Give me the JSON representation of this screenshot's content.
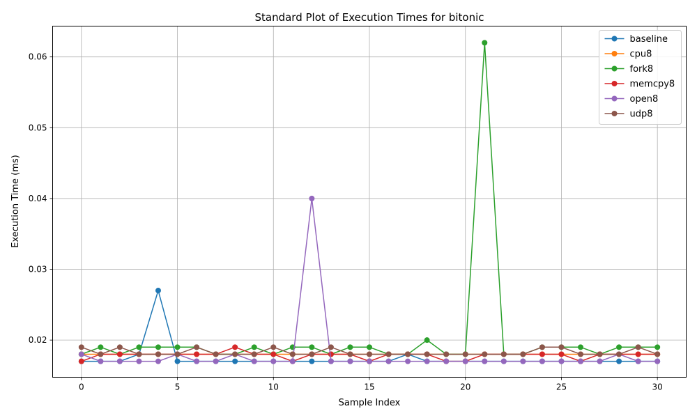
{
  "chart_data": {
    "type": "line",
    "title": "Standard Plot of Execution Times for bitonic",
    "xlabel": "Sample Index",
    "ylabel": "Execution Time (ms)",
    "xlim": [
      -1.5,
      31.5
    ],
    "ylim": [
      0.01475,
      0.06435
    ],
    "xticks": [
      0,
      5,
      10,
      15,
      20,
      25,
      30
    ],
    "yticks": [
      0.02,
      0.03,
      0.04,
      0.05,
      0.06
    ],
    "ytick_labels": [
      "0.02",
      "0.03",
      "0.04",
      "0.05",
      "0.06"
    ],
    "grid": true,
    "legend_position": "top-right",
    "x": [
      0,
      1,
      2,
      3,
      4,
      5,
      6,
      7,
      8,
      9,
      10,
      11,
      12,
      13,
      14,
      15,
      16,
      17,
      18,
      19,
      20,
      21,
      22,
      23,
      24,
      25,
      26,
      27,
      28,
      29,
      30
    ],
    "series": [
      {
        "name": "baseline",
        "color": "#1f77b4",
        "values": [
          0.017,
          0.017,
          0.017,
          0.018,
          0.027,
          0.017,
          0.017,
          0.017,
          0.017,
          0.017,
          0.017,
          0.017,
          0.017,
          0.017,
          0.017,
          0.017,
          0.017,
          0.018,
          0.017,
          0.017,
          0.017,
          0.017,
          0.017,
          0.017,
          0.017,
          0.017,
          0.017,
          0.017,
          0.017,
          0.017,
          0.017
        ]
      },
      {
        "name": "cpu8",
        "color": "#ff7f0e",
        "values": [
          0.018,
          0.018,
          0.018,
          0.018,
          0.018,
          0.018,
          0.018,
          0.018,
          0.018,
          0.018,
          0.018,
          0.018,
          0.018,
          0.018,
          0.018,
          0.018,
          0.018,
          0.018,
          0.018,
          0.018,
          0.018,
          0.018,
          0.018,
          0.018,
          0.018,
          0.018,
          0.018,
          0.018,
          0.018,
          0.018,
          0.018
        ]
      },
      {
        "name": "fork8",
        "color": "#2ca02c",
        "values": [
          0.018,
          0.019,
          0.018,
          0.019,
          0.019,
          0.019,
          0.019,
          0.018,
          0.018,
          0.019,
          0.018,
          0.019,
          0.019,
          0.018,
          0.019,
          0.019,
          0.018,
          0.018,
          0.02,
          0.018,
          0.018,
          0.062,
          0.018,
          0.018,
          0.019,
          0.019,
          0.019,
          0.018,
          0.019,
          0.019,
          0.019
        ]
      },
      {
        "name": "memcpy8",
        "color": "#d62728",
        "values": [
          0.017,
          0.018,
          0.018,
          0.018,
          0.018,
          0.018,
          0.018,
          0.018,
          0.019,
          0.018,
          0.018,
          0.017,
          0.018,
          0.018,
          0.018,
          0.017,
          0.018,
          0.018,
          0.018,
          0.017,
          0.017,
          0.018,
          0.018,
          0.018,
          0.018,
          0.018,
          0.017,
          0.018,
          0.018,
          0.018,
          0.018
        ]
      },
      {
        "name": "open8",
        "color": "#9467bd",
        "values": [
          0.018,
          0.017,
          0.017,
          0.017,
          0.017,
          0.018,
          0.017,
          0.017,
          0.018,
          0.017,
          0.017,
          0.017,
          0.04,
          0.017,
          0.017,
          0.017,
          0.017,
          0.017,
          0.017,
          0.017,
          0.017,
          0.017,
          0.017,
          0.017,
          0.017,
          0.017,
          0.017,
          0.017,
          0.018,
          0.017,
          0.017
        ]
      },
      {
        "name": "udp8",
        "color": "#8c564b",
        "values": [
          0.019,
          0.018,
          0.019,
          0.018,
          0.018,
          0.018,
          0.019,
          0.018,
          0.018,
          0.018,
          0.019,
          0.018,
          0.018,
          0.019,
          0.018,
          0.018,
          0.018,
          0.018,
          0.018,
          0.018,
          0.018,
          0.018,
          0.018,
          0.018,
          0.019,
          0.019,
          0.018,
          0.018,
          0.018,
          0.019,
          0.018
        ]
      }
    ]
  }
}
